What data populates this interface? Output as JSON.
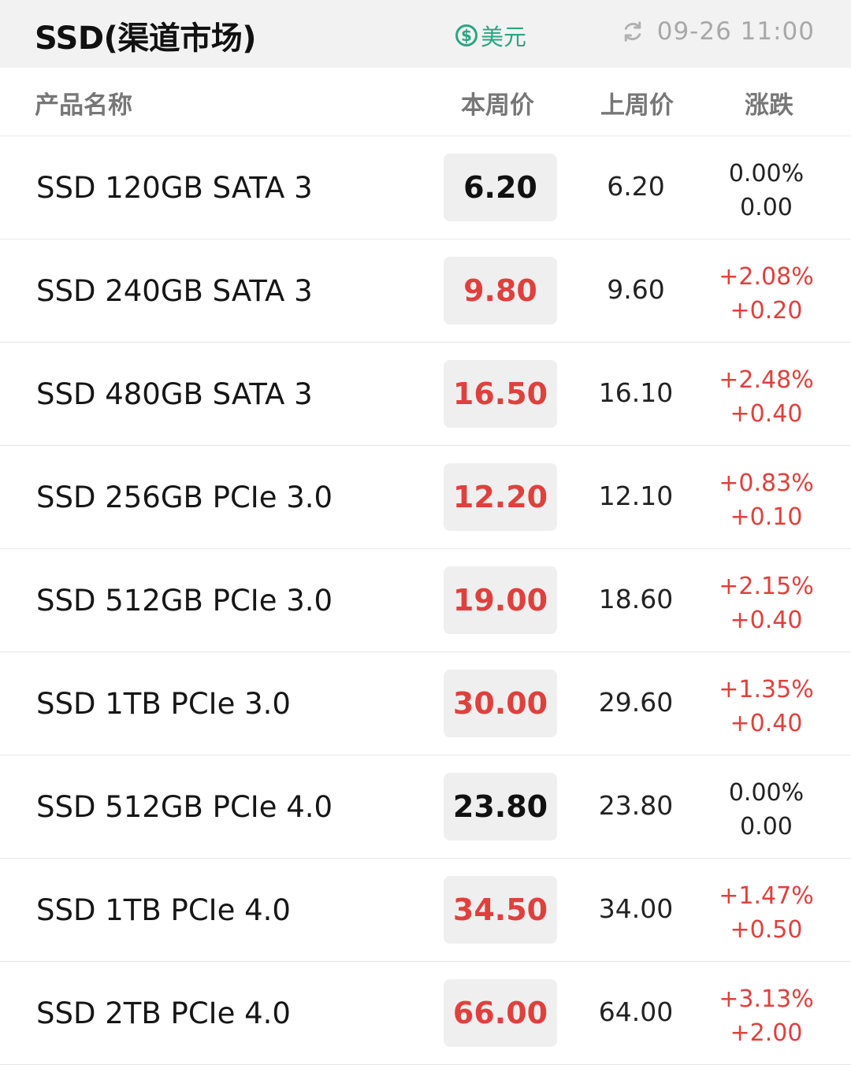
{
  "header": {
    "title": "SSD(渠道市场)",
    "currency_symbol": "$",
    "currency_label": "美元",
    "update_time": "09-26 11:00",
    "refresh_icon": "refresh-icon",
    "currency_icon": "dollar-coin-icon"
  },
  "columns": {
    "name": "产品名称",
    "this_week": "本周价",
    "last_week": "上周价",
    "change": "涨跌"
  },
  "colors": {
    "up": "#e0403d",
    "accent": "#2ca582"
  },
  "rows": [
    {
      "name": "SSD 120GB SATA 3",
      "this_week": "6.20",
      "last_week": "6.20",
      "change_pct": "0.00%",
      "change_abs": "0.00",
      "trend": "flat"
    },
    {
      "name": "SSD 240GB SATA 3",
      "this_week": "9.80",
      "last_week": "9.60",
      "change_pct": "+2.08%",
      "change_abs": "+0.20",
      "trend": "up"
    },
    {
      "name": "SSD 480GB SATA 3",
      "this_week": "16.50",
      "last_week": "16.10",
      "change_pct": "+2.48%",
      "change_abs": "+0.40",
      "trend": "up"
    },
    {
      "name": "SSD 256GB PCIe 3.0",
      "this_week": "12.20",
      "last_week": "12.10",
      "change_pct": "+0.83%",
      "change_abs": "+0.10",
      "trend": "up"
    },
    {
      "name": "SSD 512GB PCIe 3.0",
      "this_week": "19.00",
      "last_week": "18.60",
      "change_pct": "+2.15%",
      "change_abs": "+0.40",
      "trend": "up"
    },
    {
      "name": "SSD 1TB PCIe 3.0",
      "this_week": "30.00",
      "last_week": "29.60",
      "change_pct": "+1.35%",
      "change_abs": "+0.40",
      "trend": "up"
    },
    {
      "name": "SSD 512GB PCIe 4.0",
      "this_week": "23.80",
      "last_week": "23.80",
      "change_pct": "0.00%",
      "change_abs": "0.00",
      "trend": "flat"
    },
    {
      "name": "SSD 1TB PCIe 4.0",
      "this_week": "34.50",
      "last_week": "34.00",
      "change_pct": "+1.47%",
      "change_abs": "+0.50",
      "trend": "up"
    },
    {
      "name": "SSD 2TB PCIe 4.0",
      "this_week": "66.00",
      "last_week": "64.00",
      "change_pct": "+3.13%",
      "change_abs": "+2.00",
      "trend": "up"
    }
  ]
}
